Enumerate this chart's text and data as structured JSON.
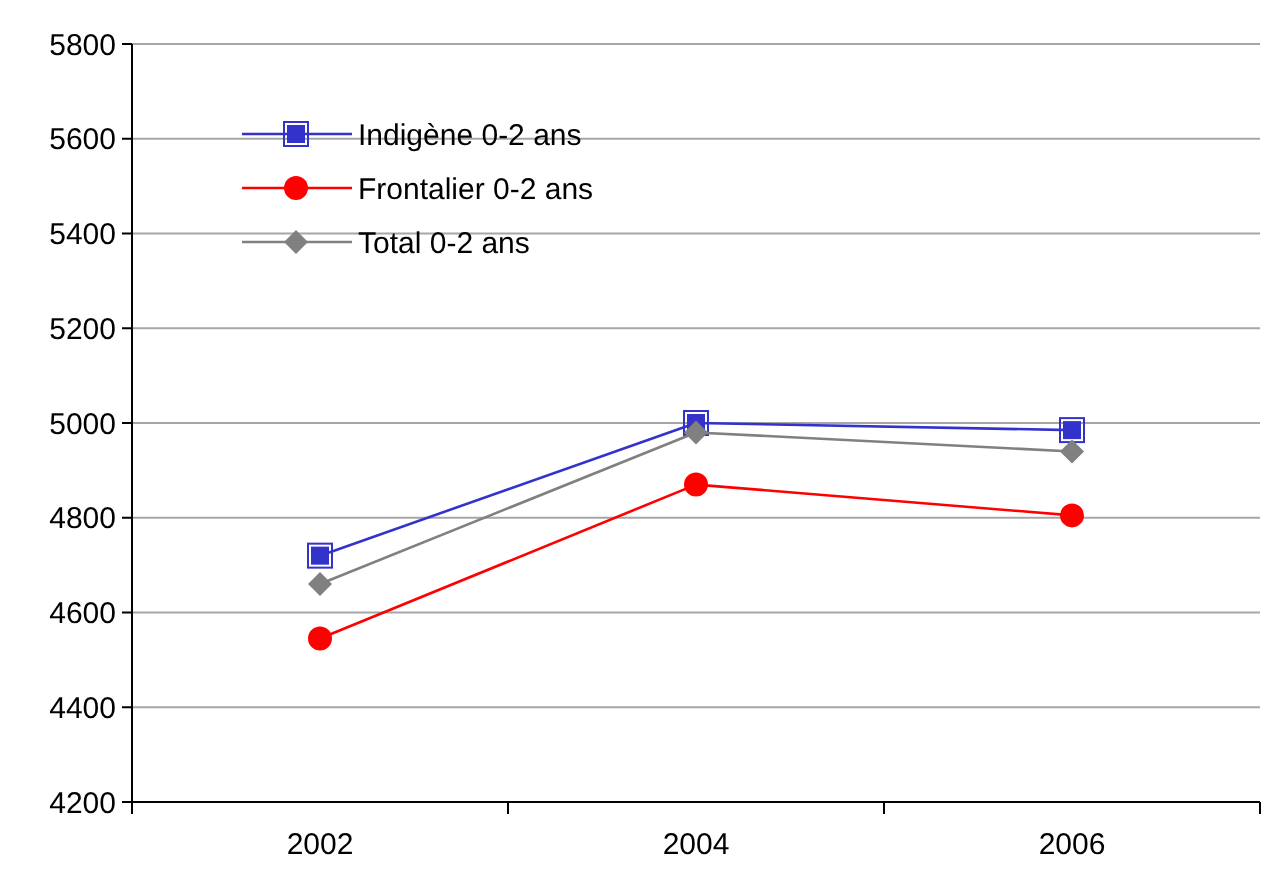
{
  "chart_data": {
    "type": "line",
    "categories": [
      "2002",
      "2004",
      "2006"
    ],
    "series": [
      {
        "name": "Indigène 0-2 ans",
        "color": "#3333cc",
        "marker": "square",
        "values": [
          4720,
          5000,
          4985
        ]
      },
      {
        "name": "Frontalier 0-2 ans",
        "color": "#ff0000",
        "marker": "circle",
        "values": [
          4545,
          4870,
          4805
        ]
      },
      {
        "name": "Total 0-2 ans",
        "color": "#808080",
        "marker": "diamond",
        "values": [
          4660,
          4980,
          4940
        ]
      }
    ],
    "ylim": [
      4200,
      5800
    ],
    "yticks": [
      4200,
      4400,
      4600,
      4800,
      5000,
      5200,
      5400,
      5600,
      5800
    ],
    "grid": "y",
    "legend": "top left"
  }
}
